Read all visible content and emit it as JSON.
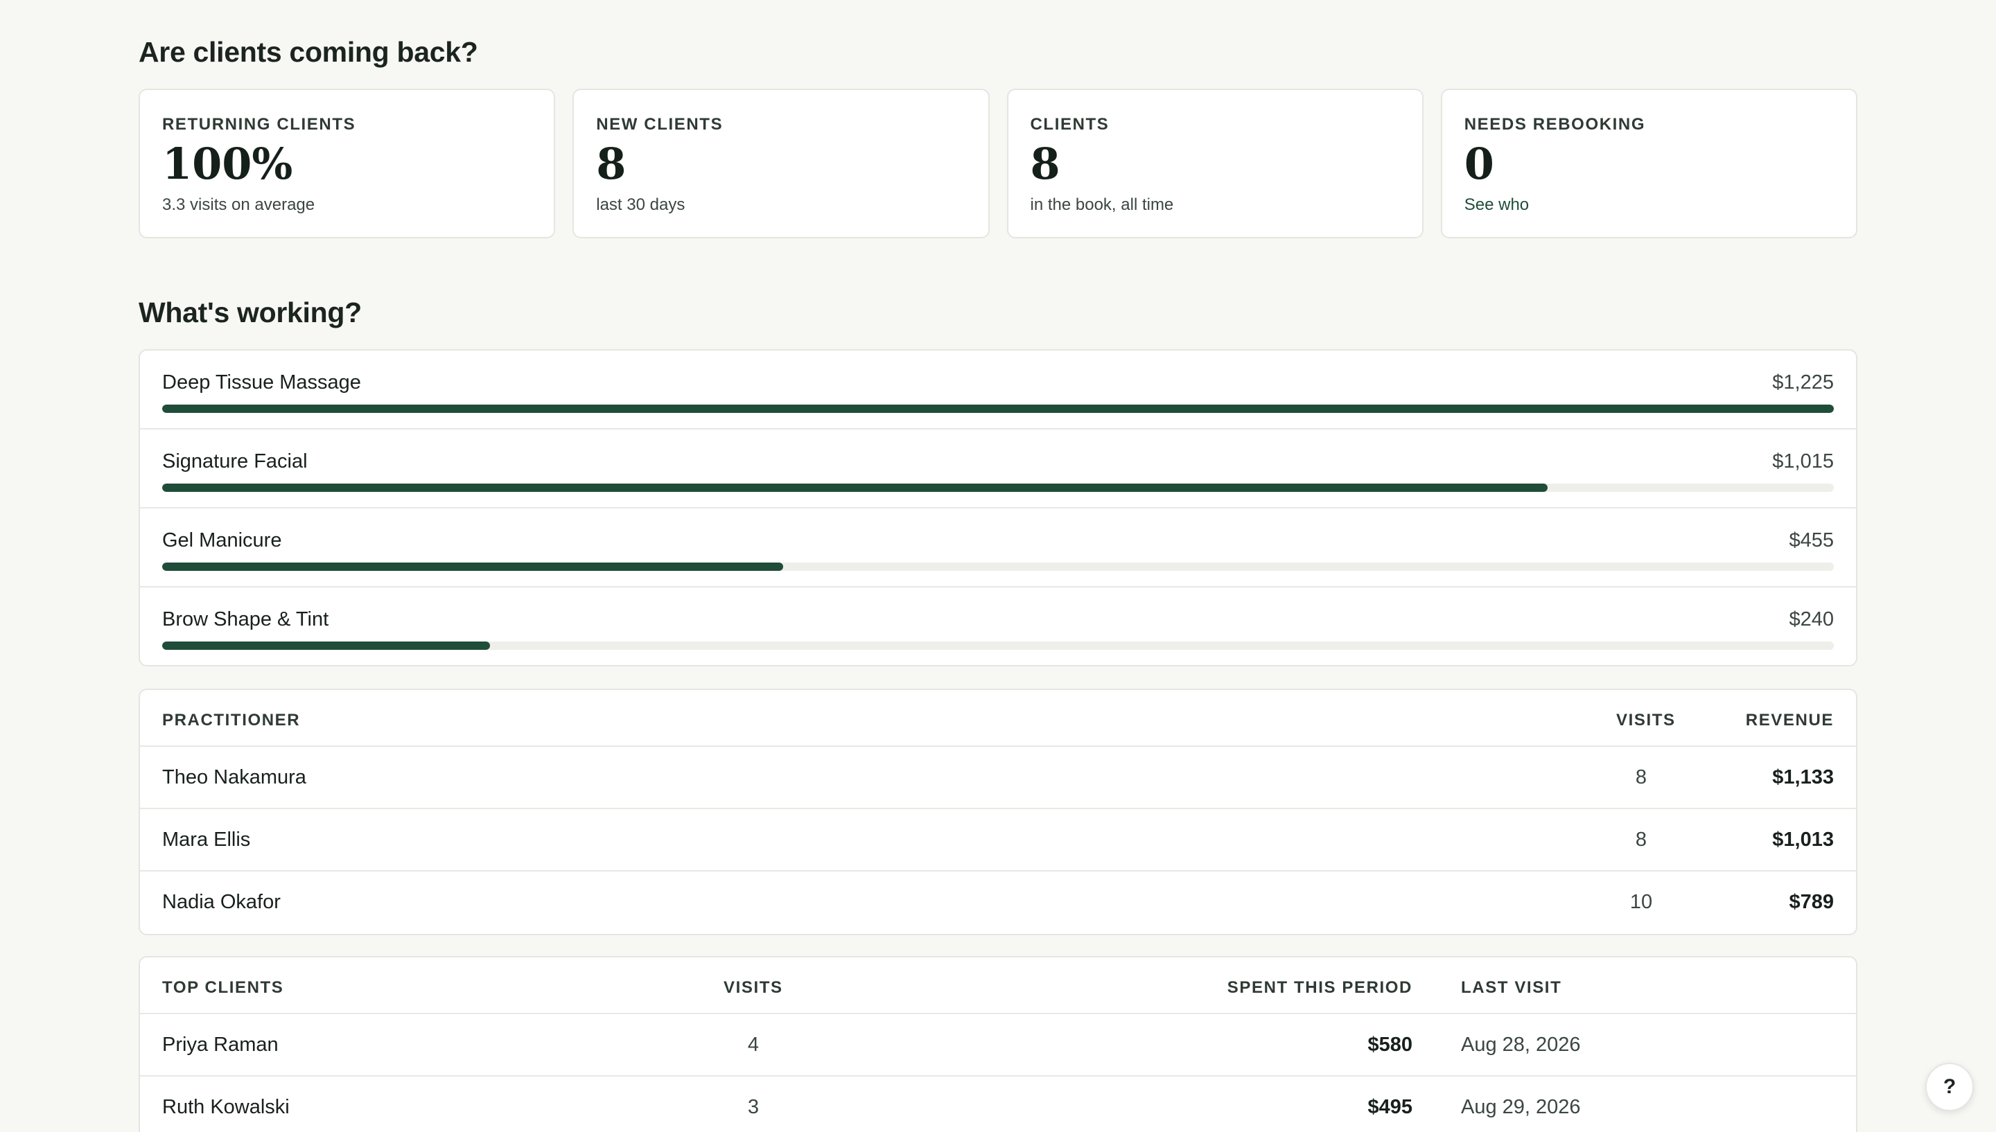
{
  "returning_section": {
    "title": "Are clients coming back?",
    "cards": [
      {
        "label": "RETURNING CLIENTS",
        "value": "100%",
        "sub": "3.3 visits on average"
      },
      {
        "label": "NEW CLIENTS",
        "value": "8",
        "sub": "last 30 days"
      },
      {
        "label": "CLIENTS",
        "value": "8",
        "sub": "in the book, all time"
      },
      {
        "label": "NEEDS REBOOKING",
        "value": "0",
        "sub": "See who"
      }
    ]
  },
  "working_section": {
    "title": "What's working?",
    "services": [
      {
        "name": "Deep Tissue Massage",
        "amount": "$1,225",
        "revenue": 1225
      },
      {
        "name": "Signature Facial",
        "amount": "$1,015",
        "revenue": 1015
      },
      {
        "name": "Gel Manicure",
        "amount": "$455",
        "revenue": 455
      },
      {
        "name": "Brow Shape & Tint",
        "amount": "$240",
        "revenue": 240
      }
    ]
  },
  "practitioners": {
    "headers": {
      "name": "PRACTITIONER",
      "visits": "VISITS",
      "revenue": "REVENUE"
    },
    "rows": [
      {
        "name": "Theo Nakamura",
        "visits": "8",
        "revenue": "$1,133"
      },
      {
        "name": "Mara Ellis",
        "visits": "8",
        "revenue": "$1,013"
      },
      {
        "name": "Nadia Okafor",
        "visits": "10",
        "revenue": "$789"
      }
    ]
  },
  "top_clients": {
    "headers": {
      "name": "TOP CLIENTS",
      "visits": "VISITS",
      "spent": "SPENT THIS PERIOD",
      "last_visit": "LAST VISIT"
    },
    "rows": [
      {
        "name": "Priya Raman",
        "visits": "4",
        "spent": "$580",
        "last_visit": "Aug 28, 2026"
      },
      {
        "name": "Ruth Kowalski",
        "visits": "3",
        "spent": "$495",
        "last_visit": "Aug 29, 2026"
      }
    ]
  },
  "help_button": {
    "label": "?"
  },
  "colors": {
    "accent": "#1f4d3a",
    "track": "#eeefea",
    "background": "#f7f8f4"
  }
}
